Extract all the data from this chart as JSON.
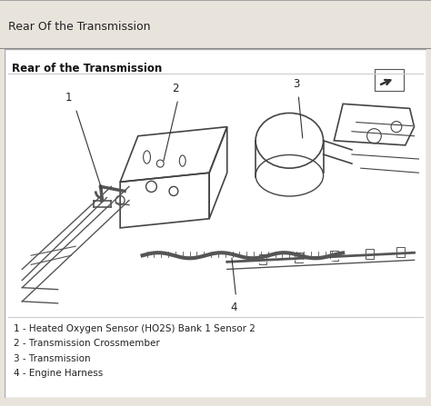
{
  "title_bar_text": "Rear Of the Transmission",
  "title_bar_bg": "#d8d4cc",
  "title_bar_text_color": "#222222",
  "inner_box_title": "Rear of the Transmission",
  "outer_bg": "#e8e4dc",
  "inner_bg": "#ffffff",
  "border_color": "#aaaaaa",
  "legend_items": [
    "1 - Heated Oxygen Sensor (HO2S) Bank 1 Sensor 2",
    "2 - Transmission Crossmember",
    "3 - Transmission",
    "4 - Engine Harness"
  ],
  "legend_text_color": "#222222",
  "legend_fontsize": 7.5,
  "diagram_image_placeholder": true,
  "fig_width": 4.74,
  "fig_height": 4.47,
  "dpi": 100
}
